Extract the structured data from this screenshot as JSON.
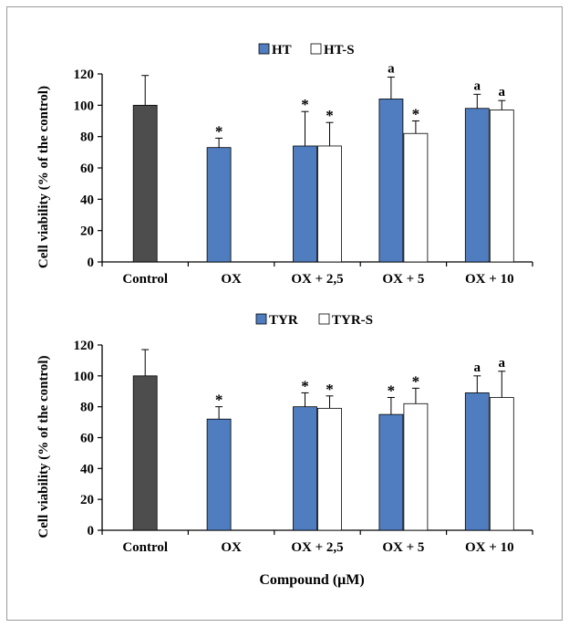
{
  "colors": {
    "control": "#4d4d4d",
    "blue": "#4f7dc0",
    "white": "#ffffff",
    "axis": "#000000"
  },
  "shared": {
    "xlabel": "Compound (μM)"
  },
  "chart_data": [
    {
      "type": "bar",
      "ylabel": "Cell viability (% of the control)",
      "ylim": [
        0,
        120
      ],
      "yticks": [
        0,
        20,
        40,
        60,
        80,
        100,
        120
      ],
      "categories": [
        "Control",
        "OX",
        "OX + 2,5",
        "OX + 5",
        "OX + 10"
      ],
      "legend_placement": "top-center",
      "control": {
        "value": 100,
        "error": 19
      },
      "series": [
        {
          "name": "HT",
          "style": "blue",
          "values": [
            null,
            73,
            74,
            104,
            98
          ],
          "errors": [
            null,
            6,
            22,
            14,
            9
          ],
          "annotations": [
            "",
            "*",
            "*",
            "a",
            "a"
          ]
        },
        {
          "name": "HT-S",
          "style": "white",
          "values": [
            null,
            0,
            74,
            82,
            97
          ],
          "errors": [
            null,
            0,
            15,
            8,
            6
          ],
          "annotations": [
            "",
            "",
            "*",
            "*",
            "a"
          ]
        }
      ]
    },
    {
      "type": "bar",
      "ylabel": "Cell viability (% of the control)",
      "ylim": [
        0,
        120
      ],
      "yticks": [
        0,
        20,
        40,
        60,
        80,
        100,
        120
      ],
      "categories": [
        "Control",
        "OX",
        "OX + 2,5",
        "OX + 5",
        "OX + 10"
      ],
      "legend_placement": "top-center",
      "control": {
        "value": 100,
        "error": 17
      },
      "series": [
        {
          "name": "TYR",
          "style": "blue",
          "values": [
            null,
            72,
            80,
            75,
            89
          ],
          "errors": [
            null,
            8,
            9,
            11,
            11
          ],
          "annotations": [
            "",
            "*",
            "*",
            "*",
            "a"
          ]
        },
        {
          "name": "TYR-S",
          "style": "white",
          "values": [
            null,
            null,
            79,
            82,
            86
          ],
          "errors": [
            null,
            null,
            8,
            10,
            17
          ],
          "annotations": [
            "",
            "",
            "*",
            "*",
            "a"
          ]
        }
      ]
    }
  ]
}
